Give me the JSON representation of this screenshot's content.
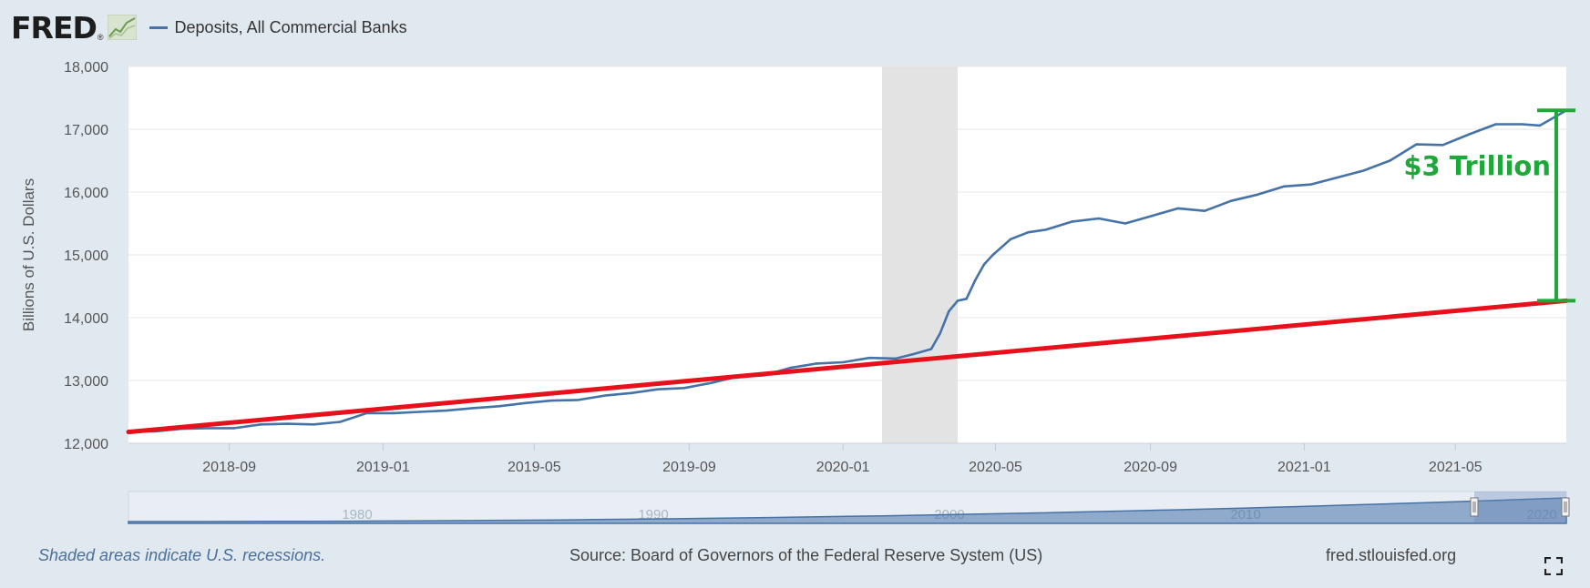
{
  "header": {
    "logo": "FRED",
    "logo_registered": "®",
    "legend_label": "Deposits, All Commercial Banks"
  },
  "footer": {
    "recession_note": "Shaded areas indicate U.S. recessions.",
    "source": "Source: Board of Governors of the Federal Reserve System (US)",
    "url": "fred.stlouisfed.org"
  },
  "colors": {
    "series": "#4572a7",
    "trend": "#e8101a",
    "annotation": "#1ea83a",
    "recession": "#e3e3e3",
    "background": "#e1e9f0"
  },
  "chart_data": {
    "type": "line",
    "title": "",
    "xlabel": "",
    "ylabel": "Billions of U.S. Dollars",
    "xlim": [
      "2018-06-13",
      "2021-07-28"
    ],
    "ylim": [
      12000,
      18000
    ],
    "yticks": [
      12000,
      13000,
      14000,
      15000,
      16000,
      17000,
      18000
    ],
    "ytick_labels": [
      "12,000",
      "13,000",
      "14,000",
      "15,000",
      "16,000",
      "17,000",
      "18,000"
    ],
    "xticks": [
      "2018-09-01",
      "2019-01-01",
      "2019-05-01",
      "2019-09-01",
      "2020-01-01",
      "2020-05-01",
      "2020-09-01",
      "2021-01-01",
      "2021-05-01"
    ],
    "xtick_labels": [
      "2018-09",
      "2019-01",
      "2019-05",
      "2019-09",
      "2020-01",
      "2020-05",
      "2020-09",
      "2021-01",
      "2021-05"
    ],
    "grid": "horizontal",
    "legend": "top-left",
    "recession": {
      "start": "2020-02-01",
      "end": "2020-04-01"
    },
    "series": [
      {
        "name": "Deposits, All Commercial Banks",
        "color": "#4572a7",
        "x": [
          "2018-06-13",
          "2018-07-04",
          "2018-07-25",
          "2018-08-15",
          "2018-09-05",
          "2018-09-26",
          "2018-10-17",
          "2018-11-07",
          "2018-11-28",
          "2018-12-19",
          "2019-01-09",
          "2019-01-30",
          "2019-02-20",
          "2019-03-13",
          "2019-04-03",
          "2019-04-24",
          "2019-05-15",
          "2019-06-05",
          "2019-06-26",
          "2019-07-17",
          "2019-08-07",
          "2019-08-28",
          "2019-09-18",
          "2019-10-09",
          "2019-10-30",
          "2019-11-20",
          "2019-12-11",
          "2020-01-01",
          "2020-01-22",
          "2020-02-12",
          "2020-02-26",
          "2020-03-11",
          "2020-03-18",
          "2020-03-25",
          "2020-04-01",
          "2020-04-08",
          "2020-04-15",
          "2020-04-22",
          "2020-04-29",
          "2020-05-13",
          "2020-05-27",
          "2020-06-10",
          "2020-07-01",
          "2020-07-22",
          "2020-08-12",
          "2020-09-02",
          "2020-09-23",
          "2020-10-14",
          "2020-11-04",
          "2020-11-25",
          "2020-12-16",
          "2021-01-06",
          "2021-01-27",
          "2021-02-17",
          "2021-03-10",
          "2021-03-31",
          "2021-04-21",
          "2021-05-12",
          "2021-06-02",
          "2021-06-23",
          "2021-07-07",
          "2021-07-28"
        ],
        "values": [
          12200,
          12190,
          12230,
          12240,
          12240,
          12300,
          12310,
          12300,
          12340,
          12480,
          12480,
          12500,
          12520,
          12560,
          12590,
          12640,
          12680,
          12690,
          12760,
          12800,
          12860,
          12880,
          12960,
          13060,
          13080,
          13200,
          13270,
          13290,
          13360,
          13350,
          13420,
          13500,
          13750,
          14100,
          14270,
          14300,
          14600,
          14850,
          15000,
          15250,
          15360,
          15400,
          15530,
          15580,
          15500,
          15620,
          15740,
          15700,
          15860,
          15960,
          16090,
          16120,
          16230,
          16340,
          16500,
          16760,
          16750,
          16920,
          17080,
          17080,
          17060,
          17300
        ]
      }
    ],
    "trend_line": {
      "x": [
        "2018-06-13",
        "2021-07-28"
      ],
      "values": [
        12180,
        14270
      ]
    },
    "annotation": {
      "label": "$3 Trillion",
      "from": 14270,
      "to": 17300
    },
    "navigator": {
      "tick_labels": [
        "1980",
        "1990",
        "2000",
        "2010",
        "2020"
      ]
    }
  }
}
